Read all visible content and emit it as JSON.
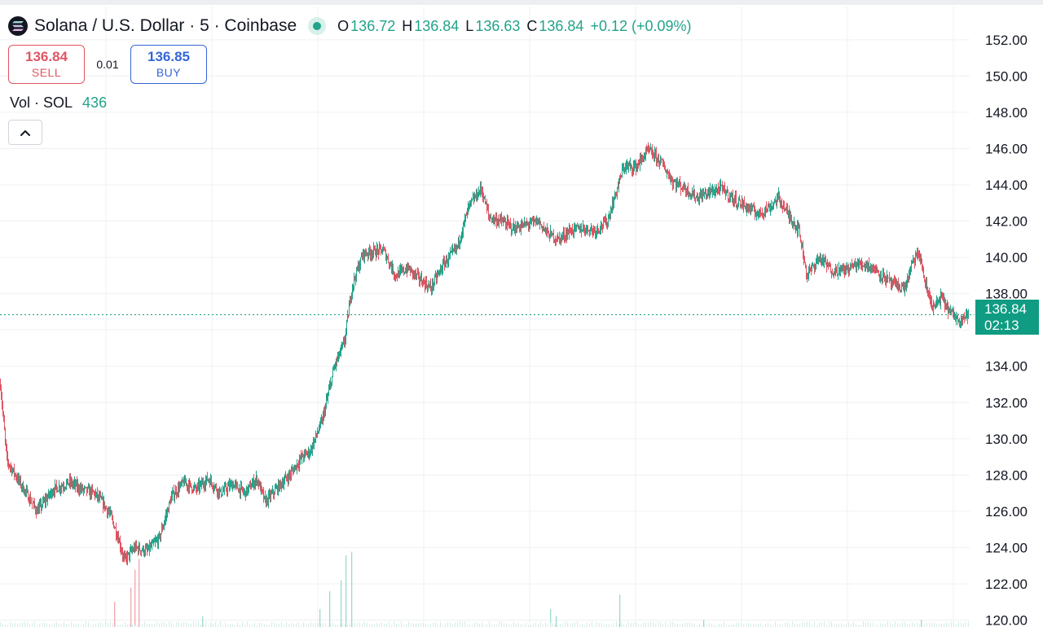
{
  "legend": {
    "symbol_title": "Solana / U.S. Dollar · 5 · Coinbase",
    "open_label": "O",
    "open": "136.72",
    "high_label": "H",
    "high": "136.84",
    "low_label": "L",
    "low": "136.63",
    "close_label": "C",
    "close": "136.84",
    "change": "+0.12 (+0.09%)"
  },
  "trade": {
    "sell_price": "136.84",
    "sell_label": "SELL",
    "spread": "0.01",
    "buy_price": "136.85",
    "buy_label": "BUY"
  },
  "volume": {
    "label": "Vol · SOL",
    "value": "436"
  },
  "last_price": {
    "price": "136.84",
    "countdown": "02:13"
  },
  "colors": {
    "up": "#22a38a",
    "down": "#e05563",
    "grid": "#eef0f3",
    "axis_text": "#131722",
    "price_line": "#0f9c83",
    "buy": "#3566d6"
  },
  "icons": {
    "collapse": "chevron-up-icon",
    "symbol": "solana-logo-icon",
    "live": "market-open-dot-icon"
  },
  "chart_data": {
    "type": "candlestick",
    "interval": "5",
    "y_axis_ticks": [
      "152.00",
      "150.00",
      "148.00",
      "146.00",
      "144.00",
      "142.00",
      "140.00",
      "138.00",
      "136.00",
      "134.00",
      "132.00",
      "130.00",
      "128.00",
      "126.00",
      "124.00",
      "122.00",
      "120.00"
    ],
    "ylim": [
      119.8,
      152.8
    ],
    "last_price": 136.84,
    "close_path": [
      {
        "i": 0,
        "c": 133.0
      },
      {
        "i": 8,
        "c": 128.8
      },
      {
        "i": 25,
        "c": 127.5
      },
      {
        "i": 45,
        "c": 126.0
      },
      {
        "i": 65,
        "c": 127.2
      },
      {
        "i": 85,
        "c": 127.6
      },
      {
        "i": 100,
        "c": 127.2
      },
      {
        "i": 115,
        "c": 127.0
      },
      {
        "i": 125,
        "c": 126.5
      },
      {
        "i": 135,
        "c": 125.8
      },
      {
        "i": 145,
        "c": 124.5
      },
      {
        "i": 152,
        "c": 123.3
      },
      {
        "i": 165,
        "c": 124.0
      },
      {
        "i": 180,
        "c": 123.8
      },
      {
        "i": 195,
        "c": 124.5
      },
      {
        "i": 210,
        "c": 126.8
      },
      {
        "i": 225,
        "c": 127.6
      },
      {
        "i": 240,
        "c": 127.2
      },
      {
        "i": 255,
        "c": 127.8
      },
      {
        "i": 270,
        "c": 127.0
      },
      {
        "i": 285,
        "c": 127.5
      },
      {
        "i": 300,
        "c": 127.0
      },
      {
        "i": 315,
        "c": 127.8
      },
      {
        "i": 325,
        "c": 126.5
      },
      {
        "i": 340,
        "c": 127.3
      },
      {
        "i": 355,
        "c": 128.0
      },
      {
        "i": 370,
        "c": 129.0
      },
      {
        "i": 380,
        "c": 129.3
      },
      {
        "i": 395,
        "c": 131.0
      },
      {
        "i": 410,
        "c": 134.0
      },
      {
        "i": 422,
        "c": 135.3
      },
      {
        "i": 432,
        "c": 138.5
      },
      {
        "i": 445,
        "c": 140.2
      },
      {
        "i": 455,
        "c": 140.3
      },
      {
        "i": 470,
        "c": 140.4
      },
      {
        "i": 485,
        "c": 139.0
      },
      {
        "i": 500,
        "c": 139.4
      },
      {
        "i": 515,
        "c": 138.8
      },
      {
        "i": 528,
        "c": 138.3
      },
      {
        "i": 545,
        "c": 139.7
      },
      {
        "i": 560,
        "c": 140.5
      },
      {
        "i": 575,
        "c": 142.8
      },
      {
        "i": 590,
        "c": 143.8
      },
      {
        "i": 600,
        "c": 142.2
      },
      {
        "i": 615,
        "c": 142.0
      },
      {
        "i": 630,
        "c": 141.6
      },
      {
        "i": 645,
        "c": 141.8
      },
      {
        "i": 660,
        "c": 142.0
      },
      {
        "i": 672,
        "c": 141.3
      },
      {
        "i": 685,
        "c": 141.0
      },
      {
        "i": 700,
        "c": 141.5
      },
      {
        "i": 715,
        "c": 141.6
      },
      {
        "i": 730,
        "c": 141.5
      },
      {
        "i": 745,
        "c": 142.0
      },
      {
        "i": 755,
        "c": 143.5
      },
      {
        "i": 765,
        "c": 145.0
      },
      {
        "i": 780,
        "c": 145.0
      },
      {
        "i": 795,
        "c": 145.9
      },
      {
        "i": 810,
        "c": 145.3
      },
      {
        "i": 825,
        "c": 144.2
      },
      {
        "i": 840,
        "c": 143.8
      },
      {
        "i": 855,
        "c": 143.3
      },
      {
        "i": 870,
        "c": 143.6
      },
      {
        "i": 885,
        "c": 143.8
      },
      {
        "i": 900,
        "c": 143.2
      },
      {
        "i": 915,
        "c": 142.8
      },
      {
        "i": 930,
        "c": 142.4
      },
      {
        "i": 945,
        "c": 142.8
      },
      {
        "i": 955,
        "c": 143.3
      },
      {
        "i": 965,
        "c": 142.5
      },
      {
        "i": 980,
        "c": 141.5
      },
      {
        "i": 990,
        "c": 139.0
      },
      {
        "i": 1005,
        "c": 140.0
      },
      {
        "i": 1020,
        "c": 139.3
      },
      {
        "i": 1035,
        "c": 139.3
      },
      {
        "i": 1050,
        "c": 139.6
      },
      {
        "i": 1065,
        "c": 139.6
      },
      {
        "i": 1080,
        "c": 139.1
      },
      {
        "i": 1095,
        "c": 138.5
      },
      {
        "i": 1110,
        "c": 138.3
      },
      {
        "i": 1120,
        "c": 139.8
      },
      {
        "i": 1128,
        "c": 140.2
      },
      {
        "i": 1135,
        "c": 138.5
      },
      {
        "i": 1145,
        "c": 137.2
      },
      {
        "i": 1155,
        "c": 137.8
      },
      {
        "i": 1165,
        "c": 137.0
      },
      {
        "i": 1175,
        "c": 136.6
      },
      {
        "i": 1188,
        "c": 136.84
      }
    ],
    "volume_spikes": [
      {
        "i": 140,
        "v": 0.7
      },
      {
        "i": 160,
        "v": 1.1
      },
      {
        "i": 165,
        "v": 1.6
      },
      {
        "i": 170,
        "v": 1.9
      },
      {
        "i": 248,
        "v": 0.3
      },
      {
        "i": 392,
        "v": 0.5
      },
      {
        "i": 404,
        "v": 1.0
      },
      {
        "i": 418,
        "v": 1.3
      },
      {
        "i": 424,
        "v": 2.0
      },
      {
        "i": 431,
        "v": 2.1
      },
      {
        "i": 675,
        "v": 0.5
      },
      {
        "i": 682,
        "v": 0.3
      },
      {
        "i": 760,
        "v": 0.9
      },
      {
        "i": 863,
        "v": 0.2
      },
      {
        "i": 1130,
        "v": 0.2
      }
    ]
  }
}
